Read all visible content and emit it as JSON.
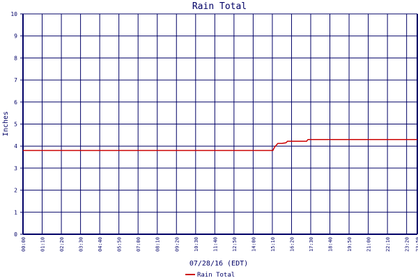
{
  "colors": {
    "axis": "#000066",
    "grid": "#000066",
    "series": "#cc0000",
    "text": "#000066",
    "background": "#ffffff"
  },
  "chart_data": {
    "type": "line",
    "title": "Rain Total",
    "ylabel": "Inches",
    "xlabel": "07/28/16 (EDT)",
    "ylim": [
      0,
      10
    ],
    "xlim": [
      "00:00",
      "23:59"
    ],
    "grid": true,
    "legend_position": "bottom-center",
    "y_ticks": [
      "0",
      "1",
      "2",
      "3",
      "4",
      "5",
      "6",
      "7",
      "8",
      "9",
      "10"
    ],
    "x_ticks": [
      "00:00",
      "01:10",
      "02:20",
      "03:30",
      "04:40",
      "05:50",
      "07:00",
      "08:10",
      "09:20",
      "10:30",
      "11:40",
      "12:50",
      "14:00",
      "15:10",
      "16:20",
      "17:30",
      "18:40",
      "19:50",
      "21:00",
      "22:10",
      "23:20",
      "23:59"
    ],
    "series": [
      {
        "name": "Rain Total",
        "x": [
          "00:00",
          "15:12",
          "15:18",
          "15:25",
          "15:30",
          "15:45",
          "16:00",
          "16:05",
          "17:15",
          "17:20",
          "23:59"
        ],
        "y": [
          3.8,
          3.8,
          3.95,
          4.05,
          4.12,
          4.12,
          4.15,
          4.22,
          4.22,
          4.3,
          4.3
        ]
      }
    ]
  }
}
